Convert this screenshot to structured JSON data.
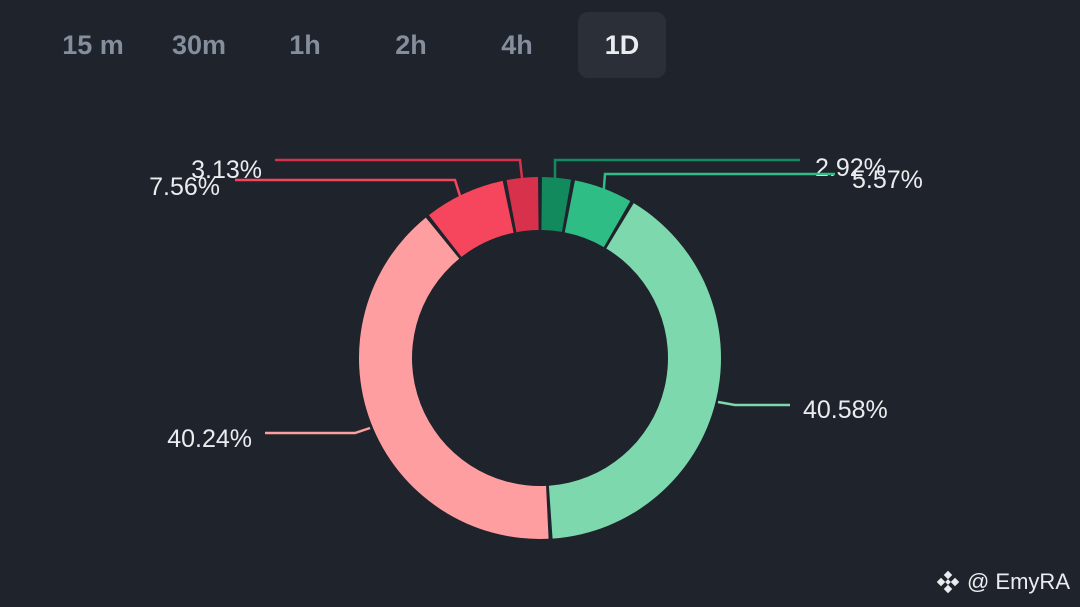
{
  "tabs": [
    {
      "label": "15 m"
    },
    {
      "label": "30m"
    },
    {
      "label": "1h"
    },
    {
      "label": "2h"
    },
    {
      "label": "4h"
    },
    {
      "label": "1D",
      "active": true
    }
  ],
  "chart_data": {
    "type": "pie",
    "donut": true,
    "slices": [
      {
        "label": "2.92%",
        "value": 2.92,
        "color": "#138a5e"
      },
      {
        "label": "5.57%",
        "value": 5.57,
        "color": "#2ebd85"
      },
      {
        "label": "40.58%",
        "value": 40.58,
        "color": "#7dd8ae"
      },
      {
        "label": "40.24%",
        "value": 40.24,
        "color": "#ff9ea1"
      },
      {
        "label": "7.56%",
        "value": 7.56,
        "color": "#f6465d"
      },
      {
        "label": "3.13%",
        "value": 3.13,
        "color": "#d8314c"
      }
    ]
  },
  "watermark": {
    "text": "@ EmyRA",
    "icon": "binance-logo-icon"
  }
}
